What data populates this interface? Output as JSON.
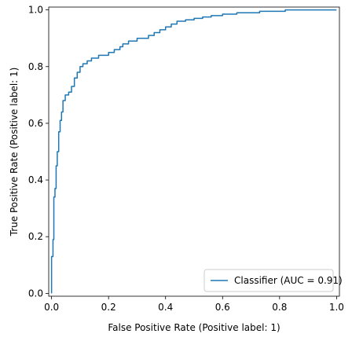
{
  "chart_data": {
    "type": "line",
    "title": "",
    "xlabel": "False Positive Rate (Positive label: 1)",
    "ylabel": "True Positive Rate (Positive label: 1)",
    "xlim": [
      -0.01,
      1.01
    ],
    "ylim": [
      -0.01,
      1.01
    ],
    "grid": false,
    "legend_position": "bottom-right",
    "x_ticks": [
      0.0,
      0.2,
      0.4,
      0.6,
      0.8,
      1.0
    ],
    "y_ticks": [
      0.0,
      0.2,
      0.4,
      0.6,
      0.8,
      1.0
    ],
    "x_tick_labels": [
      "0.0",
      "0.2",
      "0.4",
      "0.6",
      "0.8",
      "1.0"
    ],
    "y_tick_labels": [
      "0.0",
      "0.2",
      "0.4",
      "0.6",
      "0.8",
      "1.0"
    ],
    "series": [
      {
        "name": "Classifier (AUC = 0.91)",
        "color": "#1f77b4",
        "step": true,
        "x": [
          0.0,
          0.0,
          0.005,
          0.005,
          0.008,
          0.008,
          0.012,
          0.012,
          0.016,
          0.016,
          0.02,
          0.02,
          0.025,
          0.025,
          0.03,
          0.03,
          0.035,
          0.035,
          0.04,
          0.04,
          0.048,
          0.048,
          0.06,
          0.06,
          0.07,
          0.07,
          0.08,
          0.08,
          0.09,
          0.09,
          0.1,
          0.1,
          0.11,
          0.11,
          0.125,
          0.125,
          0.14,
          0.14,
          0.165,
          0.165,
          0.2,
          0.2,
          0.22,
          0.22,
          0.24,
          0.24,
          0.25,
          0.25,
          0.27,
          0.27,
          0.3,
          0.3,
          0.34,
          0.34,
          0.36,
          0.36,
          0.38,
          0.38,
          0.4,
          0.4,
          0.42,
          0.42,
          0.44,
          0.44,
          0.47,
          0.47,
          0.5,
          0.5,
          0.53,
          0.53,
          0.56,
          0.56,
          0.6,
          0.6,
          0.65,
          0.65,
          0.73,
          0.73,
          0.82,
          0.82,
          1.0
        ],
        "y": [
          0.0,
          0.13,
          0.13,
          0.19,
          0.19,
          0.34,
          0.34,
          0.37,
          0.37,
          0.45,
          0.45,
          0.5,
          0.5,
          0.57,
          0.57,
          0.61,
          0.61,
          0.64,
          0.64,
          0.68,
          0.68,
          0.7,
          0.7,
          0.71,
          0.71,
          0.73,
          0.73,
          0.76,
          0.76,
          0.78,
          0.78,
          0.8,
          0.8,
          0.81,
          0.81,
          0.82,
          0.82,
          0.83,
          0.83,
          0.84,
          0.84,
          0.85,
          0.85,
          0.86,
          0.86,
          0.87,
          0.87,
          0.88,
          0.88,
          0.89,
          0.89,
          0.9,
          0.9,
          0.91,
          0.91,
          0.92,
          0.92,
          0.93,
          0.93,
          0.94,
          0.94,
          0.95,
          0.95,
          0.96,
          0.96,
          0.965,
          0.965,
          0.97,
          0.97,
          0.975,
          0.975,
          0.98,
          0.98,
          0.985,
          0.985,
          0.99,
          0.99,
          0.995,
          0.995,
          1.0,
          1.0
        ]
      }
    ]
  }
}
